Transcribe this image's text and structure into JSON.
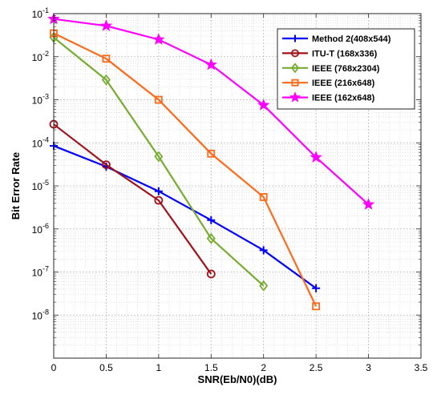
{
  "chart_data": {
    "type": "line",
    "title": "",
    "xlabel": "SNR(Eb/N0)(dB)",
    "ylabel": "Bit Error Rate",
    "xscale": "linear",
    "yscale": "log",
    "xlim": [
      0,
      3.5
    ],
    "ylim": [
      1e-09,
      0.1
    ],
    "xticks": [
      0,
      0.5,
      1,
      1.5,
      2,
      2.5,
      3,
      3.5
    ],
    "xtick_labels": [
      "0",
      "0.5",
      "1",
      "1.5",
      "2",
      "2.5",
      "3",
      "3.5"
    ],
    "yticks": [
      {
        "value": 1e-08,
        "base": "10",
        "exp": "-8"
      },
      {
        "value": 1e-07,
        "base": "10",
        "exp": "-7"
      },
      {
        "value": 1e-06,
        "base": "10",
        "exp": "-6"
      },
      {
        "value": 1e-05,
        "base": "10",
        "exp": "-5"
      },
      {
        "value": 0.0001,
        "base": "10",
        "exp": "-4"
      },
      {
        "value": 0.001,
        "base": "10",
        "exp": "-3"
      },
      {
        "value": 0.01,
        "base": "10",
        "exp": "-2"
      },
      {
        "value": 0.1,
        "base": "10",
        "exp": "-1"
      }
    ],
    "grid": true,
    "minor_grid": true,
    "legend_position": "top-right",
    "series": [
      {
        "name": "Method 2(408x544)",
        "color": "#0000ff",
        "marker": "plus",
        "x": [
          0,
          0.5,
          1,
          1.5,
          2,
          2.5
        ],
        "y": [
          8.5e-05,
          2.8e-05,
          7.5e-06,
          1.6e-06,
          3.2e-07,
          4.2e-08
        ]
      },
      {
        "name": "ITU-T (168x336)",
        "color": "#a0121c",
        "marker": "circle",
        "x": [
          0,
          0.5,
          1,
          1.5
        ],
        "y": [
          0.00027,
          3.1e-05,
          4.6e-06,
          9e-08
        ]
      },
      {
        "name": "IEEE (768x2304)",
        "color": "#77ac30",
        "marker": "diamond",
        "x": [
          0,
          0.5,
          1,
          1.5,
          2
        ],
        "y": [
          0.028,
          0.0029,
          4.8e-05,
          6e-07,
          4.8e-08
        ]
      },
      {
        "name": "IEEE (216x648)",
        "color": "#ff6a1a",
        "marker": "square",
        "x": [
          0,
          0.5,
          1,
          1.5,
          2,
          2.5
        ],
        "y": [
          0.035,
          0.009,
          0.001,
          5.6e-05,
          5.5e-06,
          1.6e-08
        ]
      },
      {
        "name": "IEEE (162x648)",
        "color": "#ff00ff",
        "marker": "star",
        "x": [
          0,
          0.5,
          1,
          1.5,
          2,
          2.5,
          3
        ],
        "y": [
          0.075,
          0.052,
          0.025,
          0.0065,
          0.00075,
          4.6e-05,
          3.7e-06
        ]
      }
    ]
  }
}
